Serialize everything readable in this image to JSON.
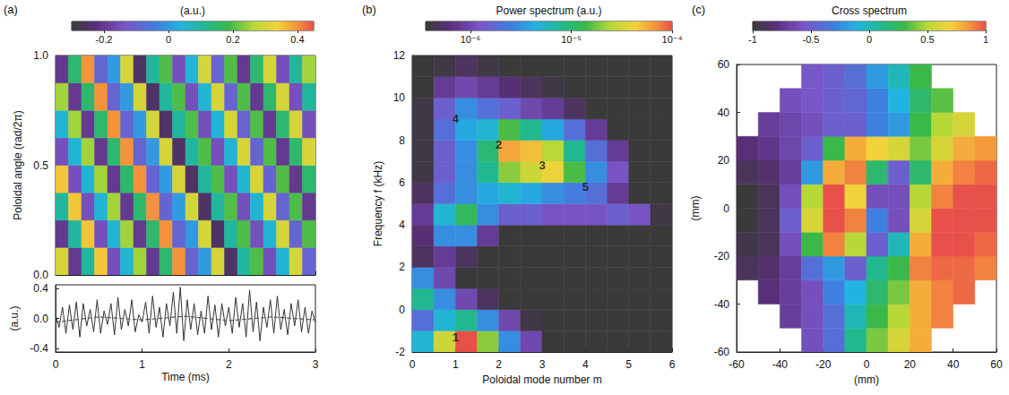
{
  "chart_data": [
    {
      "type": "heatmap",
      "panel": "(a)",
      "y_label": "Poloidal angle (rad/2π)",
      "x_bins": [
        0,
        0.15,
        0.3,
        0.45,
        0.6,
        0.75,
        0.9,
        1.05,
        1.2,
        1.35,
        1.5,
        1.65,
        1.8,
        1.95,
        2.1,
        2.25,
        2.4,
        2.55,
        2.7,
        2.85,
        3
      ],
      "y_bins": [
        0,
        0.125,
        0.25,
        0.375,
        0.5,
        0.625,
        0.75,
        0.875,
        1
      ],
      "cells": [
        [
          0.3,
          -0.2,
          0.1,
          0.35,
          -0.15,
          0.05,
          0.25,
          -0.2,
          0.15,
          0.4,
          -0.1,
          0.0,
          0.3,
          -0.25,
          0.1,
          0.2,
          -0.15,
          0.05,
          0.3,
          -0.1
        ],
        [
          -0.2,
          0.1,
          0.35,
          -0.15,
          0.05,
          0.25,
          -0.2,
          0.15,
          0.4,
          -0.1,
          0.0,
          0.3,
          -0.25,
          0.1,
          0.2,
          -0.15,
          0.05,
          0.3,
          -0.1,
          0.2
        ],
        [
          0.1,
          0.35,
          -0.15,
          0.05,
          0.25,
          -0.2,
          0.15,
          0.4,
          -0.1,
          0.0,
          0.3,
          -0.25,
          0.1,
          0.2,
          -0.15,
          0.05,
          0.3,
          -0.1,
          0.2,
          -0.2
        ],
        [
          0.35,
          -0.15,
          0.05,
          0.25,
          -0.2,
          0.15,
          0.4,
          -0.1,
          0.0,
          0.3,
          -0.25,
          0.1,
          0.2,
          -0.15,
          0.05,
          0.3,
          -0.1,
          0.2,
          -0.2,
          0.15
        ],
        [
          -0.15,
          0.05,
          0.25,
          -0.2,
          0.15,
          0.4,
          -0.1,
          0.0,
          0.3,
          -0.25,
          0.1,
          0.2,
          -0.15,
          0.05,
          0.3,
          -0.1,
          0.2,
          -0.2,
          0.15,
          0.3
        ],
        [
          0.05,
          0.25,
          -0.2,
          0.15,
          0.4,
          -0.1,
          0.0,
          0.3,
          -0.25,
          0.1,
          0.2,
          -0.15,
          0.05,
          0.3,
          -0.1,
          0.2,
          -0.2,
          0.15,
          0.3,
          -0.15
        ],
        [
          0.25,
          -0.2,
          0.15,
          0.4,
          -0.1,
          0.0,
          0.3,
          -0.25,
          0.1,
          0.2,
          -0.15,
          0.05,
          0.3,
          -0.1,
          0.2,
          -0.2,
          0.15,
          0.3,
          -0.15,
          0.1
        ],
        [
          -0.2,
          0.15,
          0.4,
          -0.1,
          0.0,
          0.3,
          -0.25,
          0.1,
          0.2,
          -0.15,
          0.05,
          0.3,
          -0.1,
          0.2,
          -0.2,
          0.15,
          0.3,
          -0.15,
          0.1,
          0.25
        ]
      ],
      "xlim": [
        0,
        3
      ],
      "xticks": [
        0,
        1,
        2,
        3
      ],
      "ylim": [
        0,
        1
      ],
      "yticks": [
        {
          "value": 0,
          "label": "0.0"
        },
        {
          "value": 0.5,
          "label": "0.5"
        },
        {
          "value": 1,
          "label": "1.0"
        }
      ],
      "tick_labels": "y",
      "grid": false,
      "colorbar_label": "(a.u.)",
      "colorbar_lim": [
        -0.3,
        0.45
      ],
      "colorbar_ticks": [
        -0.2,
        0,
        0.2,
        0.4
      ]
    },
    {
      "type": "line",
      "x_label": "Time (ms)",
      "y_label": "(a.u.)",
      "xlim": [
        0,
        3
      ],
      "xticks": [
        0,
        1,
        2,
        3
      ],
      "ylim": [
        -0.45,
        0.45
      ],
      "yticks": [
        {
          "value": -0.4,
          "label": "-0.4"
        },
        {
          "value": 0,
          "label": "0.0"
        },
        {
          "value": 0.4,
          "label": "0.4"
        }
      ],
      "grid": false,
      "series": [
        {
          "color": "#333333",
          "line_style": "solid",
          "x": [
            0,
            0.04,
            0.08,
            0.12,
            0.16,
            0.2,
            0.24,
            0.28,
            0.32,
            0.36,
            0.4,
            0.44,
            0.48,
            0.52,
            0.56,
            0.6,
            0.64,
            0.68,
            0.72,
            0.76,
            0.8,
            0.84,
            0.88,
            0.92,
            0.96,
            1,
            1.04,
            1.08,
            1.12,
            1.16,
            1.2,
            1.24,
            1.28,
            1.32,
            1.36,
            1.4,
            1.44,
            1.48,
            1.52,
            1.56,
            1.6,
            1.64,
            1.68,
            1.72,
            1.76,
            1.8,
            1.84,
            1.88,
            1.92,
            1.96,
            2,
            2.04,
            2.08,
            2.12,
            2.16,
            2.2,
            2.24,
            2.28,
            2.32,
            2.36,
            2.4,
            2.44,
            2.48,
            2.52,
            2.56,
            2.6,
            2.64,
            2.68,
            2.72,
            2.76,
            2.8,
            2.84,
            2.88,
            2.92,
            2.96,
            3
          ],
          "values": [
            0.05,
            -0.12,
            0.15,
            -0.2,
            0.18,
            -0.15,
            0.22,
            -0.25,
            0.2,
            -0.1,
            0.12,
            -0.18,
            0.25,
            -0.2,
            0.1,
            -0.08,
            0.2,
            -0.22,
            0.28,
            -0.15,
            0.12,
            -0.1,
            0.25,
            -0.18,
            0.05,
            -0.05,
            0.22,
            -0.2,
            0.3,
            -0.12,
            0.15,
            -0.25,
            0.2,
            -0.1,
            0.35,
            -0.2,
            0.42,
            -0.3,
            0.25,
            -0.15,
            0.2,
            -0.22,
            0.1,
            -0.2,
            0.3,
            -0.15,
            0.18,
            -0.25,
            0.2,
            -0.1,
            0.15,
            -0.2,
            0.28,
            -0.12,
            0.2,
            -0.25,
            0.38,
            -0.18,
            0.22,
            -0.3,
            0.15,
            -0.12,
            0.25,
            -0.2,
            0.3,
            -0.15,
            0.12,
            -0.22,
            0.2,
            -0.1,
            0.25,
            -0.18,
            0.15,
            -0.2,
            0.1,
            -0.05
          ]
        },
        {
          "color": "#555555",
          "line_style": "dashed",
          "x": [
            0,
            0.5,
            1,
            1.5,
            2,
            2.5,
            3
          ],
          "values": [
            -0.05,
            0.02,
            -0.02,
            0.03,
            -0.03,
            0.02,
            -0.02
          ]
        }
      ]
    },
    {
      "type": "heatmap",
      "panel": "(b)",
      "x_label": "Poloidal mode number m",
      "y_label": "Frequency f (kHz)",
      "log": true,
      "x_bins": [
        0,
        0.5,
        1,
        1.5,
        2,
        2.5,
        3,
        3.5,
        4,
        4.5,
        5,
        5.5,
        6
      ],
      "y_bins": [
        -2,
        -1,
        0,
        1,
        2,
        3,
        4,
        5,
        6,
        7,
        8,
        9,
        10,
        11,
        12
      ],
      "cells": [
        [
          5e-06,
          3e-05,
          0.0001,
          2e-05,
          3e-06,
          1e-06,
          3e-07,
          2e-07,
          2e-07,
          2e-07,
          2e-07,
          2e-07
        ],
        [
          2e-06,
          5e-06,
          8e-06,
          3e-06,
          1e-06,
          4e-07,
          2e-07,
          2e-07,
          2e-07,
          2e-07,
          2e-07,
          2e-07
        ],
        [
          8e-06,
          3e-06,
          1e-06,
          5e-07,
          3e-07,
          2e-07,
          2e-07,
          2e-07,
          2e-07,
          2e-07,
          2e-07,
          2e-07
        ],
        [
          3e-06,
          1e-06,
          3e-07,
          2e-07,
          2e-07,
          2e-07,
          2e-07,
          2e-07,
          2e-07,
          2e-07,
          2e-07,
          2e-07
        ],
        [
          5e-07,
          8e-07,
          5e-07,
          2e-07,
          2e-07,
          2e-07,
          2e-07,
          2e-07,
          2e-07,
          2e-07,
          2e-07,
          2e-07
        ],
        [
          6e-07,
          3e-06,
          3e-06,
          8e-07,
          3e-07,
          2e-07,
          2e-07,
          2e-07,
          2e-07,
          2e-07,
          2e-07,
          2e-07
        ],
        [
          8e-07,
          5e-06,
          1.2e-05,
          3e-06,
          1.5e-06,
          1.5e-06,
          1.2e-06,
          1.2e-06,
          1.2e-06,
          1.5e-06,
          1.2e-06,
          4e-07
        ],
        [
          5e-07,
          2e-06,
          3e-06,
          4e-06,
          5e-06,
          4e-06,
          3e-06,
          2.5e-06,
          2e-06,
          8e-07,
          3e-07,
          2e-07
        ],
        [
          4e-07,
          1.5e-06,
          3e-06,
          8e-06,
          2e-05,
          3e-05,
          4e-05,
          1.5e-05,
          3e-06,
          1.2e-06,
          3e-07,
          2e-07
        ],
        [
          4e-07,
          1.5e-06,
          3e-06,
          1e-05,
          6e-05,
          5e-05,
          2.5e-05,
          8e-06,
          2e-06,
          8e-07,
          3e-07,
          2e-07
        ],
        [
          4e-07,
          2e-06,
          4e-06,
          5e-06,
          1.5e-05,
          8e-06,
          4e-06,
          2e-06,
          8e-07,
          3e-07,
          2e-07,
          2e-07
        ],
        [
          4e-07,
          1.5e-06,
          3e-06,
          2e-06,
          1.5e-06,
          1e-06,
          8e-07,
          5e-07,
          3e-07,
          2e-07,
          2e-07,
          2e-07
        ],
        [
          3e-07,
          8e-07,
          1e-06,
          8e-07,
          6e-07,
          5e-07,
          4e-07,
          3e-07,
          2e-07,
          2e-07,
          2e-07,
          2e-07
        ],
        [
          2e-07,
          4e-07,
          5e-07,
          4e-07,
          3e-07,
          2e-07,
          2e-07,
          2e-07,
          2e-07,
          2e-07,
          2e-07,
          2e-07
        ]
      ],
      "xlim": [
        0,
        6
      ],
      "xticks": [
        0,
        1,
        2,
        3,
        4,
        5,
        6
      ],
      "ylim": [
        -2,
        12
      ],
      "yticks": [
        -2,
        0,
        2,
        4,
        6,
        8,
        10,
        12
      ],
      "grid": false,
      "colorbar_label": "Power spectrum (a.u.)",
      "colorbar_lim": [
        3.6e-07,
        0.0001
      ],
      "colorbar_ticks": [
        {
          "value": 1e-06,
          "label": "10⁻⁶"
        },
        {
          "value": 1e-05,
          "label": "10⁻⁵"
        },
        {
          "value": 0.0001,
          "label": "10⁻⁴"
        }
      ],
      "annotations": [
        {
          "text": "1",
          "x": 1,
          "y": -1.3
        },
        {
          "text": "2",
          "x": 2,
          "y": 7.8
        },
        {
          "text": "3",
          "x": 3,
          "y": 6.8
        },
        {
          "text": "4",
          "x": 1,
          "y": 9
        },
        {
          "text": "5",
          "x": 4,
          "y": 5.8
        }
      ]
    },
    {
      "type": "heatmap",
      "panel": "(c)",
      "x_label": "(mm)",
      "y_label": "(mm)",
      "x_bins": [
        -60,
        -50,
        -40,
        -30,
        -20,
        -10,
        0,
        10,
        20,
        30,
        40,
        50,
        60
      ],
      "y_bins": [
        -60,
        -50,
        -40,
        -30,
        -20,
        -10,
        0,
        10,
        20,
        30,
        40,
        50,
        60
      ],
      "cells": [
        [
          null,
          null,
          null,
          -0.6,
          -0.4,
          0.1,
          0.4,
          0.6,
          0.8,
          null,
          null,
          null
        ],
        [
          null,
          null,
          -0.7,
          -0.6,
          -0.4,
          0.0,
          0.3,
          0.5,
          0.8,
          0.9,
          null,
          null
        ],
        [
          null,
          -0.8,
          -0.7,
          -0.6,
          -0.3,
          -0.1,
          0.2,
          0.4,
          0.8,
          0.9,
          0.95,
          null
        ],
        [
          -0.9,
          -0.85,
          -0.7,
          -0.4,
          -0.2,
          -0.5,
          0.1,
          0.3,
          0.9,
          0.95,
          0.95,
          0.9
        ],
        [
          -0.95,
          -0.9,
          -0.6,
          0.3,
          0.9,
          0.5,
          -0.5,
          0.0,
          0.8,
          1.0,
          1.0,
          0.95
        ],
        [
          -1.0,
          -0.9,
          -0.5,
          0.6,
          1.0,
          0.9,
          -0.3,
          -0.6,
          0.6,
          1.0,
          1.0,
          1.0
        ],
        [
          -1.0,
          -0.9,
          -0.6,
          0.5,
          1.0,
          0.7,
          -0.6,
          -0.6,
          0.5,
          0.9,
          1.0,
          1.0
        ],
        [
          -0.9,
          -0.85,
          -0.7,
          -0.2,
          0.8,
          0.9,
          0.2,
          -0.5,
          0.2,
          0.8,
          0.9,
          0.95
        ],
        [
          -0.8,
          -0.75,
          -0.65,
          -0.5,
          0.3,
          0.8,
          0.7,
          0.6,
          0.4,
          0.6,
          0.8,
          0.85
        ],
        [
          null,
          -0.7,
          -0.65,
          -0.6,
          -0.5,
          -0.5,
          -0.3,
          -0.2,
          0.3,
          0.5,
          0.6,
          null
        ],
        [
          null,
          null,
          -0.6,
          -0.55,
          -0.5,
          -0.45,
          -0.3,
          -0.1,
          0.2,
          0.35,
          null,
          null
        ],
        [
          null,
          null,
          null,
          -0.55,
          -0.5,
          -0.4,
          -0.2,
          0.0,
          0.3,
          null,
          null,
          null
        ]
      ],
      "xlim": [
        -60,
        60
      ],
      "xticks": [
        -60,
        -40,
        -20,
        0,
        20,
        40,
        60
      ],
      "ylim": [
        -60,
        60
      ],
      "yticks": [
        -60,
        -40,
        -20,
        0,
        20,
        40,
        60
      ],
      "grid": false,
      "colorbar_label": "Cross spectrum",
      "colorbar_lim": [
        -1,
        1
      ],
      "colorbar_ticks": [
        -1,
        -0.5,
        0,
        0.5,
        1
      ]
    }
  ]
}
